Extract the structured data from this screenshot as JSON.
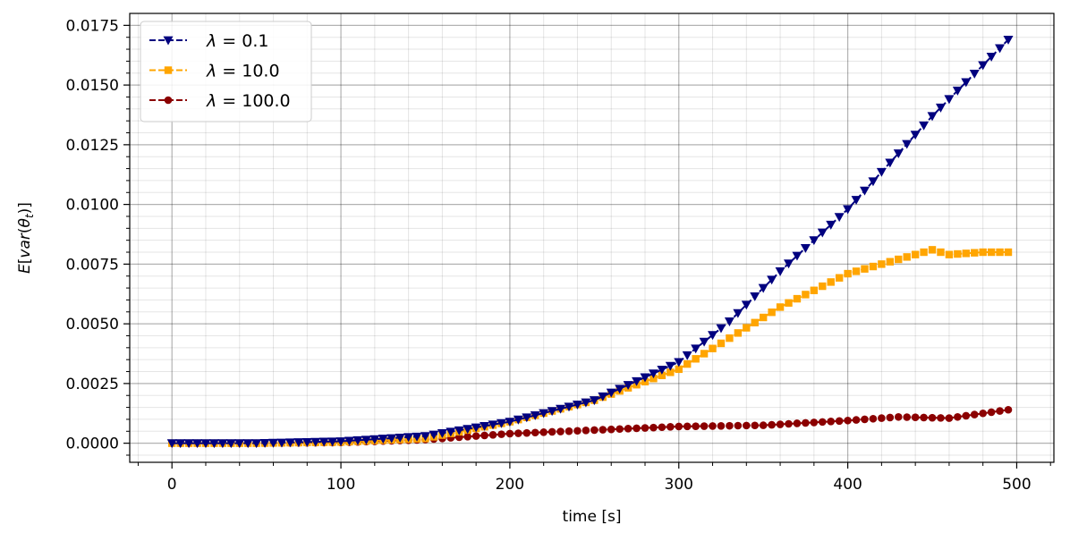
{
  "chart_data": {
    "type": "line",
    "title": "",
    "xlabel": "time [s]",
    "ylabel_parts": {
      "E": "E",
      "open_bracket": "[",
      "var": "var",
      "paren_open": "(",
      "theta": "θ",
      "sub": "t",
      "paren_close": ")",
      "close_bracket": "]"
    },
    "xlim": [
      -25,
      522
    ],
    "ylim": [
      -0.0008,
      0.018
    ],
    "xticks": [
      0,
      100,
      200,
      300,
      400,
      500
    ],
    "xtick_labels": [
      "0",
      "100",
      "200",
      "300",
      "400",
      "500"
    ],
    "yticks": [
      0.0,
      0.0025,
      0.005,
      0.0075,
      0.01,
      0.0125,
      0.015,
      0.0175
    ],
    "ytick_labels": [
      "0.0000",
      "0.0025",
      "0.0050",
      "0.0075",
      "0.0100",
      "0.0125",
      "0.0150",
      "0.0175"
    ],
    "grid": true,
    "minor_grid": true,
    "legend_position": "top-left",
    "x_step": 5,
    "x_count": 100,
    "series": [
      {
        "lambda_symbol": "λ",
        "eq": " = ",
        "value_label": "0.1",
        "color": "#00007f",
        "marker": "triangle-down",
        "keypoints": [
          [
            0,
            0
          ],
          [
            50,
            0
          ],
          [
            100,
            8e-05
          ],
          [
            150,
            0.0003
          ],
          [
            200,
            0.0009
          ],
          [
            250,
            0.0018
          ],
          [
            300,
            0.0034
          ],
          [
            330,
            0.0051
          ],
          [
            360,
            0.0072
          ],
          [
            400,
            0.0098
          ],
          [
            450,
            0.0137
          ],
          [
            495,
            0.0169
          ]
        ]
      },
      {
        "lambda_symbol": "λ",
        "eq": " = ",
        "value_label": "10.0",
        "color": "#ffa500",
        "marker": "square",
        "keypoints": [
          [
            0,
            0
          ],
          [
            50,
            0
          ],
          [
            100,
            5e-05
          ],
          [
            150,
            0.0002
          ],
          [
            200,
            0.0009
          ],
          [
            250,
            0.0018
          ],
          [
            300,
            0.0031
          ],
          [
            330,
            0.0044
          ],
          [
            360,
            0.0057
          ],
          [
            400,
            0.0071
          ],
          [
            420,
            0.0075
          ],
          [
            450,
            0.0081
          ],
          [
            460,
            0.0079
          ],
          [
            480,
            0.008
          ],
          [
            495,
            0.008
          ]
        ]
      },
      {
        "lambda_symbol": "λ",
        "eq": " = ",
        "value_label": "100.0",
        "color": "#8b0000",
        "marker": "circle",
        "keypoints": [
          [
            0,
            0
          ],
          [
            50,
            0
          ],
          [
            100,
            3e-05
          ],
          [
            150,
            0.00015
          ],
          [
            200,
            0.0004
          ],
          [
            250,
            0.00055
          ],
          [
            300,
            0.0007
          ],
          [
            350,
            0.00075
          ],
          [
            400,
            0.00095
          ],
          [
            430,
            0.0011
          ],
          [
            460,
            0.00105
          ],
          [
            495,
            0.0014
          ]
        ]
      }
    ]
  }
}
